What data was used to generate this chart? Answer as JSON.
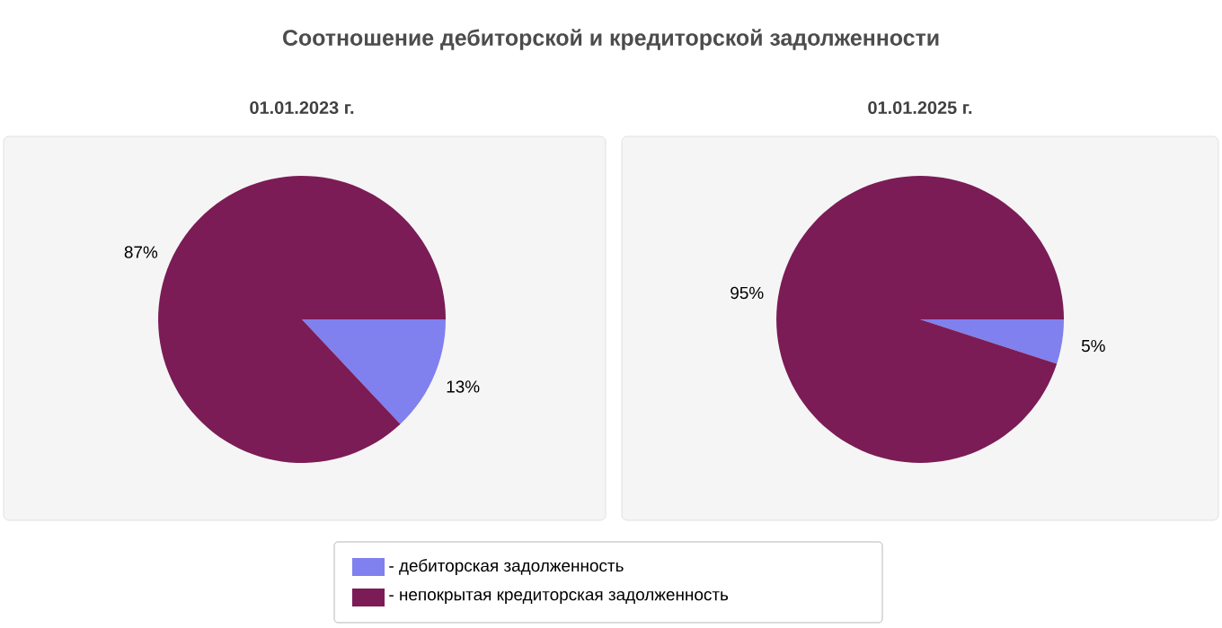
{
  "chart_data": [
    {
      "type": "pie",
      "title": "Соотношение дебиторской и кредиторской задолженности",
      "subtitle": "01.01.2023 г.",
      "categories": [
        "- дебиторская задолженность",
        "- непокрытая кредиторская задолженность"
      ],
      "values": [
        13,
        87
      ],
      "value_labels": [
        "13%",
        "87%"
      ],
      "colors": [
        "#8080ee",
        "#7b1c56"
      ],
      "legend": "bottom"
    },
    {
      "type": "pie",
      "subtitle": "01.01.2025 г.",
      "categories": [
        null,
        null
      ],
      "values": [
        5,
        95
      ],
      "value_labels": [
        "5%",
        "95%"
      ],
      "colors": [
        "#8080ee",
        "#7b1c56"
      ]
    }
  ]
}
